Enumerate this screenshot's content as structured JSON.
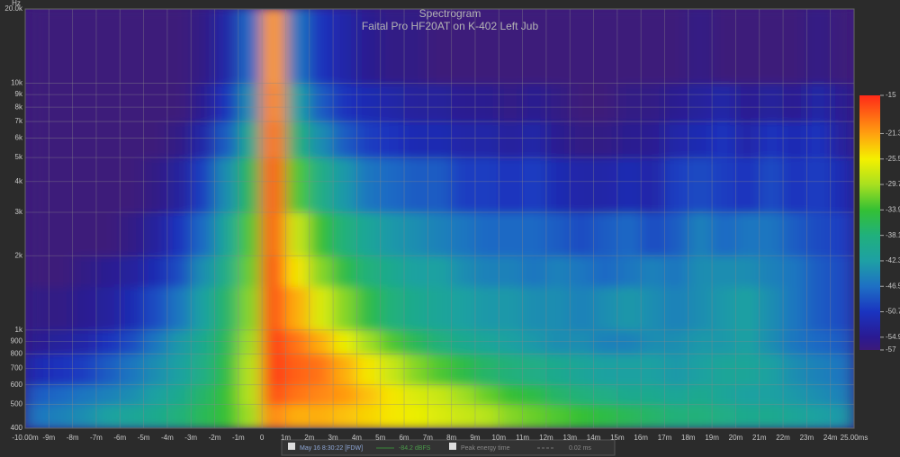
{
  "chart_data": {
    "type": "heatmap",
    "title": "Spectrogram",
    "subtitle": "Faital  Pro HF20AT on K-402 Left Jub",
    "y_unit": "Hz",
    "xlim": [
      -10,
      25
    ],
    "ylim": [
      400,
      20000
    ],
    "ylog": true,
    "grid": true,
    "xticks": [
      {
        "value": -10,
        "label": "-10.00m"
      },
      {
        "value": -9,
        "label": "-9m"
      },
      {
        "value": -8,
        "label": "-8m"
      },
      {
        "value": -7,
        "label": "-7m"
      },
      {
        "value": -6,
        "label": "-6m"
      },
      {
        "value": -5,
        "label": "-5m"
      },
      {
        "value": -4,
        "label": "-4m"
      },
      {
        "value": -3,
        "label": "-3m"
      },
      {
        "value": -2,
        "label": "-2m"
      },
      {
        "value": -1,
        "label": "-1m"
      },
      0,
      {
        "value": 1,
        "label": "1m"
      },
      {
        "value": 2,
        "label": "2m"
      },
      {
        "value": 3,
        "label": "3m"
      },
      {
        "value": 4,
        "label": "4m"
      },
      {
        "value": 5,
        "label": "5m"
      },
      {
        "value": 6,
        "label": "6m"
      },
      {
        "value": 7,
        "label": "7m"
      },
      {
        "value": 8,
        "label": "8m"
      },
      {
        "value": 9,
        "label": "9m"
      },
      {
        "value": 10,
        "label": "10m"
      },
      {
        "value": 11,
        "label": "11m"
      },
      {
        "value": 12,
        "label": "12m"
      },
      {
        "value": 13,
        "label": "13m"
      },
      {
        "value": 14,
        "label": "14m"
      },
      {
        "value": 15,
        "label": "15m"
      },
      {
        "value": 16,
        "label": "16m"
      },
      {
        "value": 17,
        "label": "17m"
      },
      {
        "value": 18,
        "label": "18m"
      },
      {
        "value": 19,
        "label": "19m"
      },
      {
        "value": 20,
        "label": "20m"
      },
      {
        "value": 21,
        "label": "21m"
      },
      {
        "value": 22,
        "label": "22m"
      },
      {
        "value": 23,
        "label": "23m"
      },
      {
        "value": 24,
        "label": "24m"
      },
      {
        "value": 25,
        "label": "25.00ms"
      }
    ],
    "yticks": [
      400,
      500,
      600,
      700,
      800,
      900,
      {
        "value": 1000,
        "label": "1k"
      },
      {
        "value": 2000,
        "label": "2k"
      },
      {
        "value": 3000,
        "label": "3k"
      },
      {
        "value": 4000,
        "label": "4k"
      },
      {
        "value": 5000,
        "label": "5k"
      },
      {
        "value": 6000,
        "label": "6k"
      },
      {
        "value": 7000,
        "label": "7k"
      },
      {
        "value": 8000,
        "label": "8k"
      },
      {
        "value": 9000,
        "label": "9k"
      },
      {
        "value": 10000,
        "label": "10k"
      },
      {
        "value": 20000,
        "label": "20.0k"
      }
    ],
    "xbins": [
      -10,
      -9,
      -8,
      -7,
      -6,
      -5,
      -4,
      -3,
      -2,
      -1,
      0,
      1,
      2,
      3,
      4,
      5,
      6,
      7,
      8,
      9,
      10,
      11,
      12,
      13,
      14,
      15,
      16,
      17,
      18,
      19,
      20,
      21,
      22,
      23,
      24,
      25
    ],
    "ybins": [
      400,
      500,
      600,
      800,
      1000,
      1500,
      2000,
      3000,
      5000,
      7000,
      10000,
      20000
    ],
    "values": [
      [
        -46,
        -45,
        -44,
        -42,
        -41,
        -40,
        -38,
        -36,
        -34,
        -30,
        -20,
        -22,
        -22,
        -23,
        -24,
        -25,
        -26,
        -27,
        -28,
        -29,
        -31,
        -32,
        -33,
        -34,
        -35,
        -36,
        -37,
        -38,
        -38,
        -39,
        -40,
        -40,
        -41,
        -42,
        -43
      ],
      [
        -48,
        -47,
        -46,
        -45,
        -44,
        -42,
        -40,
        -37,
        -34,
        -29,
        -17,
        -19,
        -20,
        -21,
        -23,
        -25,
        -27,
        -28,
        -30,
        -32,
        -34,
        -35,
        -37,
        -38,
        -39,
        -40,
        -40,
        -41,
        -40,
        -41,
        -42,
        -42,
        -43,
        -44,
        -45
      ],
      [
        -52,
        -51,
        -50,
        -48,
        -46,
        -44,
        -42,
        -39,
        -35,
        -29,
        -16,
        -18,
        -19,
        -22,
        -25,
        -28,
        -31,
        -33,
        -35,
        -37,
        -38,
        -39,
        -40,
        -41,
        -42,
        -42,
        -42,
        -43,
        -42,
        -41,
        -41,
        -42,
        -44,
        -45,
        -46
      ],
      [
        -55,
        -54,
        -53,
        -51,
        -49,
        -46,
        -43,
        -40,
        -36,
        -30,
        -16,
        -19,
        -22,
        -26,
        -30,
        -33,
        -36,
        -38,
        -40,
        -41,
        -42,
        -43,
        -44,
        -44,
        -45,
        -45,
        -44,
        -44,
        -43,
        -43,
        -42,
        -44,
        -46,
        -47,
        -48
      ],
      [
        -56,
        -56,
        -55,
        -54,
        -52,
        -49,
        -46,
        -42,
        -37,
        -31,
        -17,
        -22,
        -27,
        -31,
        -35,
        -38,
        -40,
        -41,
        -42,
        -43,
        -43,
        -44,
        -44,
        -45,
        -44,
        -43,
        -44,
        -45,
        -44,
        -43,
        -42,
        -44,
        -46,
        -48,
        -49
      ],
      [
        -57,
        -57,
        -56,
        -55,
        -54,
        -52,
        -49,
        -44,
        -39,
        -32,
        -17,
        -25,
        -31,
        -35,
        -38,
        -40,
        -42,
        -42,
        -44,
        -45,
        -45,
        -46,
        -45,
        -46,
        -47,
        -46,
        -45,
        -46,
        -44,
        -44,
        -44,
        -45,
        -46,
        -48,
        -49
      ],
      [
        -57,
        -57,
        -57,
        -57,
        -56,
        -54,
        -51,
        -47,
        -41,
        -33,
        -18,
        -28,
        -34,
        -38,
        -41,
        -43,
        -44,
        -45,
        -46,
        -47,
        -47,
        -47,
        -48,
        -49,
        -48,
        -47,
        -49,
        -48,
        -45,
        -47,
        -46,
        -46,
        -48,
        -49,
        -50
      ],
      [
        -57,
        -57,
        -57,
        -57,
        -57,
        -56,
        -54,
        -50,
        -44,
        -36,
        -18,
        -33,
        -39,
        -43,
        -46,
        -47,
        -48,
        -48,
        -50,
        -50,
        -51,
        -50,
        -52,
        -53,
        -53,
        -52,
        -53,
        -50,
        -49,
        -50,
        -51,
        -49,
        -51,
        -50,
        -52
      ],
      [
        -57,
        -57,
        -57,
        -57,
        -57,
        -57,
        -56,
        -53,
        -48,
        -40,
        -19,
        -38,
        -44,
        -48,
        -50,
        -51,
        -52,
        -52,
        -53,
        -53,
        -54,
        -53,
        -55,
        -56,
        -56,
        -55,
        -55,
        -53,
        -52,
        -51,
        -53,
        -51,
        -52,
        -51,
        -54
      ],
      [
        -57,
        -57,
        -57,
        -57,
        -57,
        -57,
        -57,
        -55,
        -51,
        -44,
        -20,
        -42,
        -48,
        -51,
        -52,
        -53,
        -54,
        -54,
        -55,
        -55,
        -56,
        -55,
        -56,
        -57,
        -57,
        -56,
        -56,
        -55,
        -54,
        -53,
        -55,
        -54,
        -55,
        -53,
        -55
      ],
      [
        -57,
        -57,
        -57,
        -57,
        -57,
        -57,
        -57,
        -56,
        -53,
        -47,
        -21,
        -46,
        -51,
        -53,
        -55,
        -56,
        -56,
        -57,
        -57,
        -57,
        -57,
        -57,
        -57,
        -57,
        -57,
        -57,
        -57,
        -57,
        -56,
        -57,
        -57,
        -57,
        -57,
        -56,
        -57
      ]
    ],
    "clim": [
      -57,
      -15
    ],
    "colorbar": {
      "ticks": [
        -15,
        -21.3,
        -25.5,
        -29.7,
        -33.9,
        -38.1,
        -42.3,
        -46.5,
        -50.7,
        -54.9,
        -57
      ],
      "colors": [
        "#ff2a18",
        "#ffa010",
        "#f4f000",
        "#a8e020",
        "#34c034",
        "#20b07c",
        "#1ea0a4",
        "#1e70c4",
        "#1a34c0",
        "#2a1a92",
        "#3c1a7a"
      ]
    },
    "legend": {
      "measurement": "May 16 8:30:22 [FDW]",
      "level": "-84.2 dBFS",
      "peak_label": "Peak energy time",
      "peak_value": "0.02 ms"
    }
  }
}
